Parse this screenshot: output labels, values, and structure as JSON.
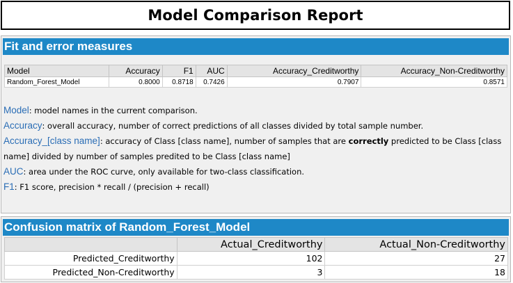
{
  "title": "Model Comparison Report",
  "fit_section": {
    "header": "Fit and error measures",
    "columns": [
      "Model",
      "Accuracy",
      "F1",
      "AUC",
      "Accuracy_Creditworthy",
      "Accuracy_Non-Creditworthy"
    ],
    "rows": [
      [
        "Random_Forest_Model",
        "0.8000",
        "0.8718",
        "0.7426",
        "0.7907",
        "0.8571"
      ]
    ],
    "descriptions": [
      {
        "term": "Model",
        "text": ": model names in the current comparison."
      },
      {
        "term": "Accuracy",
        "text": ": overall accuracy, number of correct predictions of all classes divided by total sample number."
      },
      {
        "term": "Accuracy_[class name]",
        "text_before": ": accuracy of Class [class name], number of samples that are ",
        "bold": "correctly",
        "text_after": " predicted to be Class [class name] divided by number of samples predited to be Class [class name]"
      },
      {
        "term": "AUC",
        "text": ": area under the ROC curve, only available for two-class classification."
      },
      {
        "term": "F1",
        "text": ": F1 score, precision * recall / (precision + recall)"
      }
    ]
  },
  "cm_section": {
    "header": "Confusion matrix of Random_Forest_Model",
    "columns": [
      "",
      "Actual_Creditworthy",
      "Actual_Non-Creditworthy"
    ],
    "rows": [
      [
        "Predicted_Creditworthy",
        "102",
        "27"
      ],
      [
        "Predicted_Non-Creditworthy",
        "3",
        "18"
      ]
    ]
  }
}
